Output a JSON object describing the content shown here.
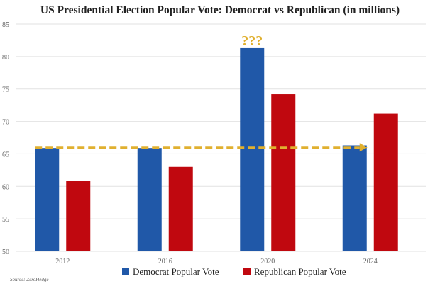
{
  "chart_data": {
    "type": "bar",
    "title": "US Presidential Election Popular Vote: Democrat vs Republican (in millions)",
    "xlabel": "",
    "ylabel": "",
    "categories": [
      "2012",
      "2016",
      "2020",
      "2024"
    ],
    "series": [
      {
        "name": "Democrat Popular Vote",
        "color": "#2058a8",
        "values": [
          65.9,
          65.9,
          81.3,
          66.3
        ]
      },
      {
        "name": "Republican Popular Vote",
        "color": "#c0080f",
        "values": [
          60.9,
          63.0,
          74.2,
          71.2
        ]
      }
    ],
    "ylim": [
      50,
      85
    ],
    "yticks": [
      50,
      55,
      60,
      65,
      70,
      75,
      80,
      85
    ],
    "grid": true,
    "legend": "bottom",
    "annotations": {
      "trend_arrow": {
        "color": "#e0b030",
        "from_category": "2012",
        "to_category": "2024",
        "value": 66
      },
      "question_marks": {
        "text": "???",
        "category": "2020",
        "color": "#e0b030"
      }
    },
    "source": "Source: ZeroHedge"
  }
}
